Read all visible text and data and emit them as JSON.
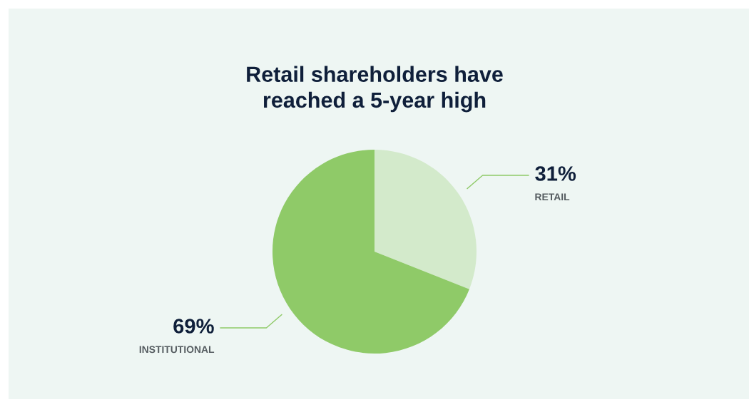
{
  "chart_data": {
    "type": "pie",
    "title": "Retail shareholders have\nreached a 5-year high",
    "categories": [
      "RETAIL",
      "INSTITUTIONAL"
    ],
    "values": [
      31,
      69
    ],
    "colors": [
      "#d3eacb",
      "#8fca68"
    ],
    "value_labels": [
      "31%",
      "69%"
    ]
  }
}
